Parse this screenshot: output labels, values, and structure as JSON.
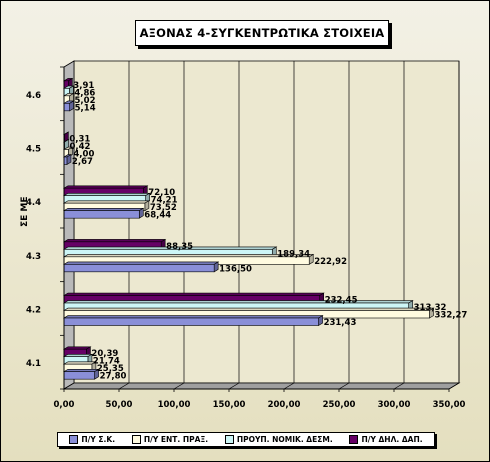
{
  "chart_data": {
    "type": "bar",
    "orientation": "horizontal",
    "title": "ΑΞΟΝΑΣ 4-ΣΥΓΚΕΝΤΡΩΤΙΚΑ ΣΤΟΙΧΕΙΑ",
    "ylabel": "ΣΕ ΜΕ",
    "xlabel": "",
    "categories": [
      "4.1",
      "4.2",
      "4.3",
      "4.4",
      "4.5",
      "4.6"
    ],
    "xlim": [
      0,
      350
    ],
    "xticks": [
      "0,00",
      "50,00",
      "100,00",
      "150,00",
      "200,00",
      "250,00",
      "300,00",
      "350,00"
    ],
    "grid": true,
    "legend_position": "bottom",
    "series": [
      {
        "name": "Π/Υ Σ.Κ.",
        "color": "#8a8fd8",
        "values": [
          27.8,
          231.43,
          136.5,
          68.44,
          2.67,
          5.14
        ],
        "labels": [
          "27,80",
          "231,43",
          "136,50",
          "68,44",
          "2,67",
          "5,14"
        ]
      },
      {
        "name": "Π/Υ ΕΝΤ. ΠΡΑΞ.",
        "color": "#fffbe0",
        "values": [
          25.35,
          332.27,
          222.92,
          73.52,
          4.0,
          5.02
        ],
        "labels": [
          "25,35",
          "332,27",
          "222,92",
          "73,52",
          "4,00",
          "5,02"
        ]
      },
      {
        "name": "ΠΡΟΥΠ. ΝΟΜΙΚ. ΔΕΣΜ.",
        "color": "#cdf6f6",
        "values": [
          21.74,
          313.32,
          189.34,
          74.21,
          0.42,
          4.86
        ],
        "labels": [
          "21,74",
          "313,32",
          "189,34",
          "74,21",
          "0,42",
          "4,86"
        ]
      },
      {
        "name": "Π/Υ ΔΗΛ. ΔΑΠ.",
        "color": "#660066",
        "values": [
          20.39,
          232.45,
          88.35,
          72.1,
          0.31,
          3.91
        ],
        "labels": [
          "20,39",
          "232,45",
          "88,35",
          "72,10",
          "0,31",
          "3,91"
        ]
      }
    ]
  }
}
